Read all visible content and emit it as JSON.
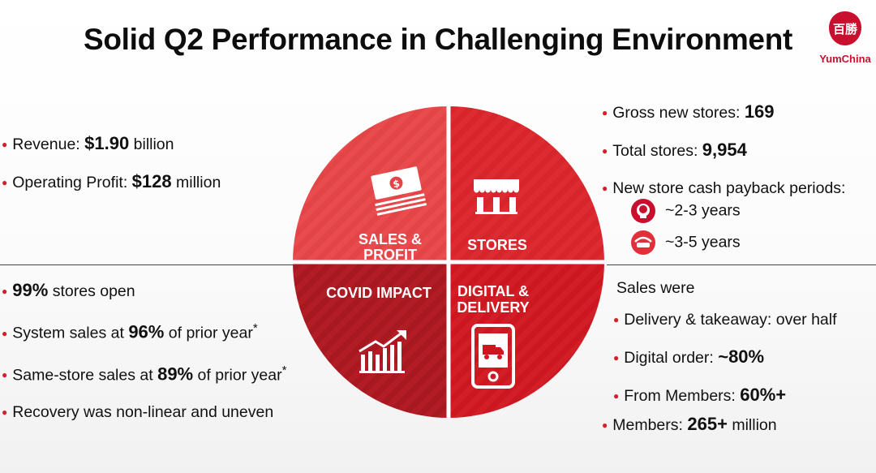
{
  "slide": {
    "title": "Solid Q2 Performance in Challenging Environment",
    "logo": {
      "text": "YumChina",
      "glyph": "百勝",
      "color": "#c8102e"
    }
  },
  "colors": {
    "accent": "#d4202e",
    "quadrant_light": "#e34446",
    "quadrant_mid": "#d8242b",
    "quadrant_dark": "#a81820"
  },
  "quadrants": {
    "top_left": {
      "label_line1": "SALES &",
      "label_line2": "PROFIT",
      "icon": "money-stack-icon"
    },
    "top_right": {
      "label": "STORES",
      "icon": "storefront-icon"
    },
    "bottom_left": {
      "label": "COVID IMPACT",
      "icon": "growth-chart-icon"
    },
    "bottom_right": {
      "label_line1": "DIGITAL &",
      "label_line2": "DELIVERY",
      "icon": "phone-delivery-icon"
    }
  },
  "sales_profit": {
    "items": [
      {
        "label": "Revenue: ",
        "value": "$1.90",
        "suffix": " billion"
      },
      {
        "label": "Operating Profit: ",
        "value": "$128",
        "suffix": " million"
      }
    ]
  },
  "stores": {
    "items": [
      {
        "label": "Gross new stores: ",
        "value": "169"
      },
      {
        "label": "Total stores: ",
        "value": "9,954"
      },
      {
        "label": "New store cash payback periods:"
      }
    ],
    "payback": [
      {
        "brand": "KFC",
        "icon": "kfc-logo-icon",
        "text": "~2-3 years"
      },
      {
        "brand": "Pizza Hut",
        "icon": "pizza-hut-logo-icon",
        "text": "~3-5 years"
      }
    ]
  },
  "covid": {
    "items": [
      {
        "value": "99%",
        "suffix": " stores open"
      },
      {
        "label": "System sales at ",
        "value": "96%",
        "suffix": " of prior year",
        "note": "*"
      },
      {
        "label": "Same-store sales at ",
        "value": "89%",
        "suffix": " of prior year",
        "note": "*"
      },
      {
        "label": "Recovery was non-linear and uneven"
      }
    ]
  },
  "digital": {
    "intro": "Sales were",
    "subitems": [
      {
        "label": "Delivery & takeaway: over half"
      },
      {
        "label": "Digital order: ",
        "value": "~80%"
      },
      {
        "label": "From Members: ",
        "value": "60%+"
      }
    ],
    "members": {
      "label": "Members: ",
      "value": "265+",
      "suffix": " million"
    }
  }
}
